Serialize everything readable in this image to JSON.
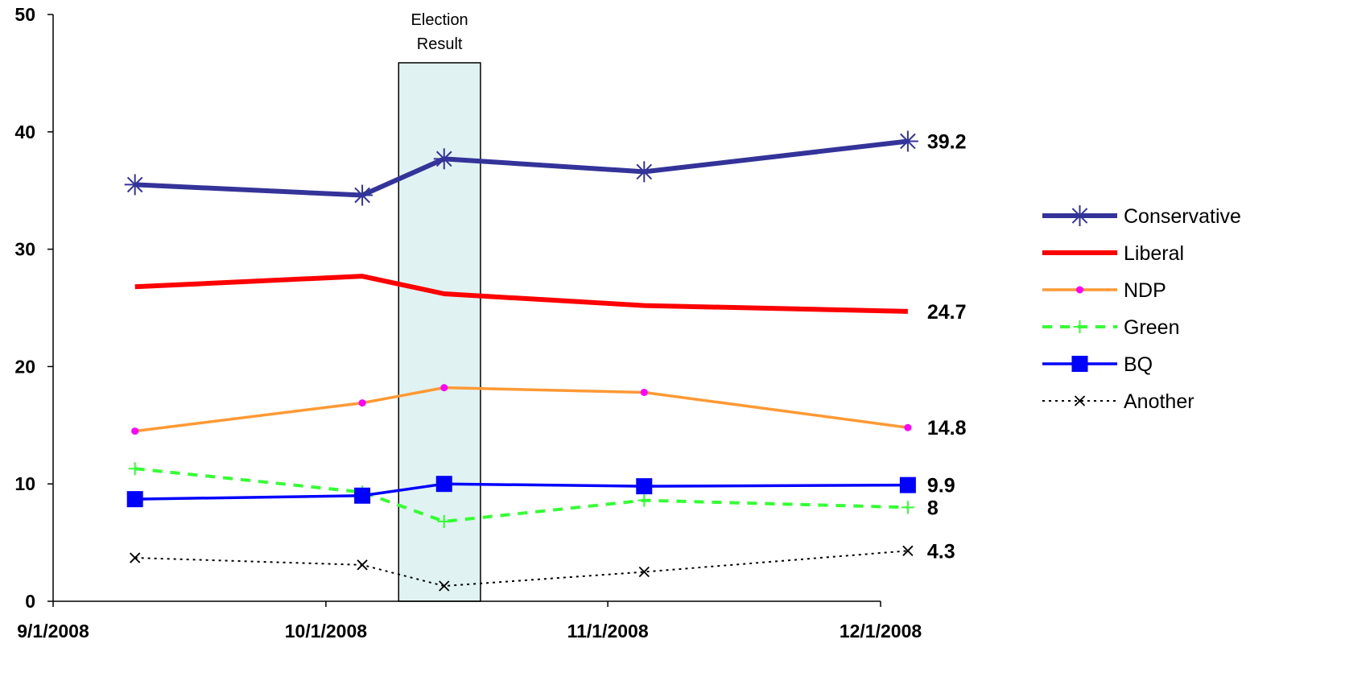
{
  "chart_data": {
    "type": "line",
    "title": "",
    "xlabel": "",
    "ylabel": "",
    "ylim": [
      0,
      50
    ],
    "yticks": [
      "0",
      "10",
      "20",
      "30",
      "40",
      "50"
    ],
    "xlim": [
      "2008-09-01",
      "2008-12-01"
    ],
    "xticks": [
      "9/1/2008",
      "10/1/2008",
      "11/1/2008",
      "12/1/2008"
    ],
    "grid": false,
    "legend_position": "right",
    "highlight": {
      "label_line1": "Election",
      "label_line2": "Result",
      "from": "2008-10-09",
      "to": "2008-10-18"
    },
    "series": [
      {
        "name": "Conservative",
        "color": "#333399",
        "marker": "asterisk",
        "style": "solid-thick",
        "x": [
          "2008-09-10",
          "2008-10-05",
          "2008-10-14",
          "2008-11-05",
          "2008-12-04"
        ],
        "values": [
          35.5,
          34.6,
          37.7,
          36.6,
          39.2
        ],
        "end_label": "39.2"
      },
      {
        "name": "Liberal",
        "color": "#ff0000",
        "marker": "none",
        "style": "solid-thick",
        "x": [
          "2008-09-10",
          "2008-10-05",
          "2008-10-14",
          "2008-11-05",
          "2008-12-04"
        ],
        "values": [
          26.8,
          27.7,
          26.2,
          25.2,
          24.7
        ],
        "end_label": "24.7"
      },
      {
        "name": "NDP",
        "color": "#ff9933",
        "marker": "dot",
        "style": "solid",
        "x": [
          "2008-09-10",
          "2008-10-05",
          "2008-10-14",
          "2008-11-05",
          "2008-12-04"
        ],
        "values": [
          14.5,
          16.9,
          18.2,
          17.8,
          14.8
        ],
        "end_label": "14.8"
      },
      {
        "name": "Green",
        "color": "#33ff33",
        "marker": "plus",
        "style": "dashed",
        "x": [
          "2008-09-10",
          "2008-10-05",
          "2008-10-14",
          "2008-11-05",
          "2008-12-04"
        ],
        "values": [
          11.3,
          9.3,
          6.8,
          8.6,
          8.0
        ],
        "end_label": "8"
      },
      {
        "name": "BQ",
        "color": "#0000ff",
        "marker": "square",
        "style": "solid",
        "x": [
          "2008-09-10",
          "2008-10-05",
          "2008-10-14",
          "2008-11-05",
          "2008-12-04"
        ],
        "values": [
          8.7,
          9.0,
          10.0,
          9.8,
          9.9
        ],
        "end_label": "9.9"
      },
      {
        "name": "Another",
        "color": "#000000",
        "marker": "x",
        "style": "dotted",
        "x": [
          "2008-09-10",
          "2008-10-05",
          "2008-10-14",
          "2008-11-05",
          "2008-12-04"
        ],
        "values": [
          3.7,
          3.1,
          1.3,
          2.5,
          4.3
        ],
        "end_label": "4.3"
      }
    ]
  }
}
